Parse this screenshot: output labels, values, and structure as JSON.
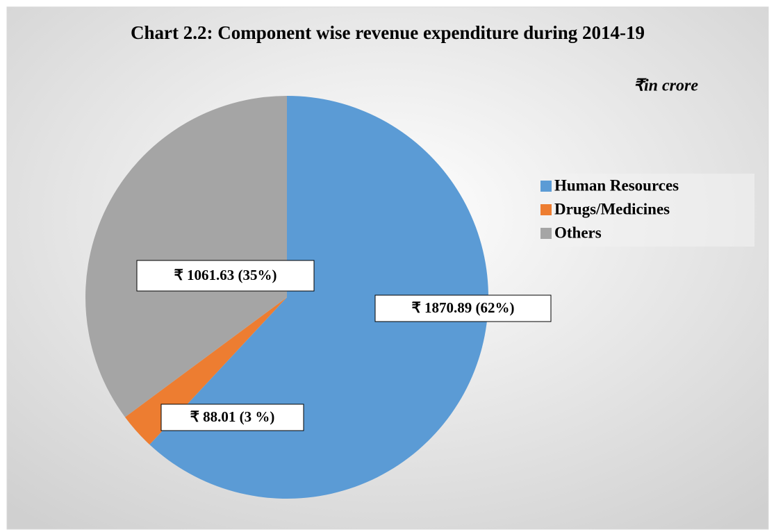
{
  "chart_data": {
    "type": "pie",
    "title": "Chart 2.2: Component wise revenue expenditure during 2014-19",
    "subtitle": "₹in crore",
    "categories": [
      "Human Resources",
      "Drugs/Medicines",
      "Others"
    ],
    "values": [
      1870.89,
      88.01,
      1061.63
    ],
    "value_labels": [
      "₹ 1870.89 (62%)",
      "₹ 88.01 (3 %)",
      "₹ 1061.63 (35%)"
    ],
    "colors": [
      "#5b9bd5",
      "#ed7d31",
      "#a5a5a5"
    ],
    "legend": "right"
  }
}
